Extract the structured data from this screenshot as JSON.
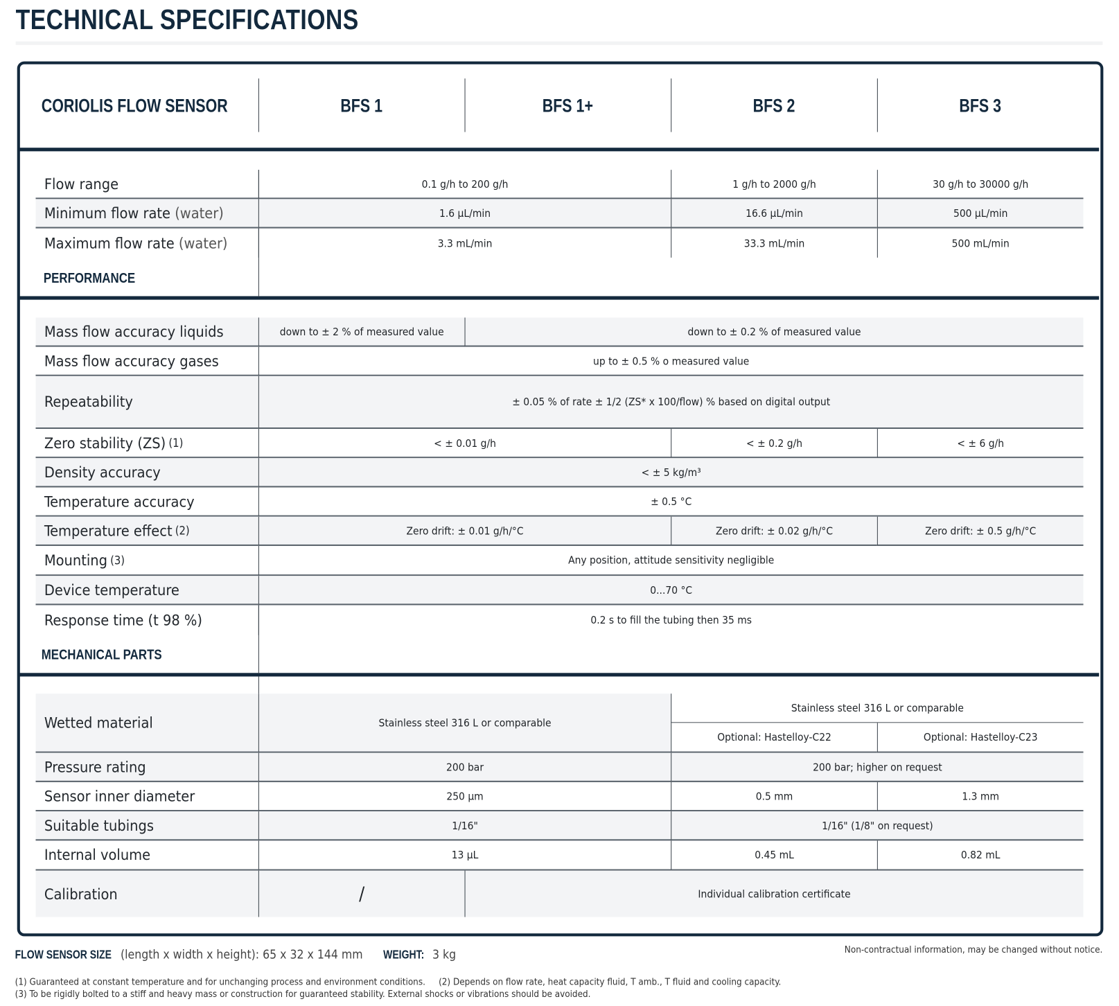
{
  "title": "TECHNICAL SPECIFICATIONS",
  "header": {
    "product": "CORIOLIS FLOW SENSOR",
    "models": [
      "BFS 1",
      "BFS 1+",
      "BFS 2",
      "BFS 3"
    ]
  },
  "sections": {
    "performance": "PERFORMANCE",
    "mechanical": "MECHANICAL PARTS"
  },
  "rows": {
    "flow_range": {
      "label": "Flow range",
      "bfs1": "0.1 g/h to 200 g/h",
      "bfs2": "1 g/h to 2000 g/h",
      "bfs3": "30 g/h to 30000 g/h"
    },
    "min_flow": {
      "label": "Minimum flow rate",
      "label_suffix": "(water)",
      "bfs1": "1.6 µL/min",
      "bfs2": "16.6 µL/min",
      "bfs3": "500 µL/min"
    },
    "max_flow": {
      "label": "Maximum flow rate",
      "label_suffix": "(water)",
      "bfs1": "3.3 mL/min",
      "bfs2": "33.3 mL/min",
      "bfs3": "500 mL/min"
    },
    "acc_liquids": {
      "label": "Mass flow accuracy liquids",
      "bfs1": "down to ± 2 % of measured value",
      "others": "down to ± 0.2 % of measured value"
    },
    "acc_gases": {
      "label": "Mass flow accuracy gases",
      "all": "up to ± 0.5 % o measured value"
    },
    "repeatability": {
      "label": "Repeatability",
      "all": "± 0.05 % of rate ± 1/2 (ZS* x 100/flow) % based on digital output"
    },
    "zero_stability": {
      "label": "Zero stability (ZS)",
      "note": "(1)",
      "bfs1": "< ± 0.01 g/h",
      "bfs2": "< ± 0.2 g/h",
      "bfs3": "< ± 6 g/h"
    },
    "density": {
      "label": "Density accuracy",
      "all": "< ± 5 kg/m³"
    },
    "temp_accuracy": {
      "label": "Temperature accuracy",
      "all": "± 0.5 °C"
    },
    "temp_effect": {
      "label": "Temperature effect",
      "note": "(2)",
      "bfs1": "Zero drift: ± 0.01 g/h/°C",
      "bfs2": "Zero drift: ± 0.02 g/h/°C",
      "bfs3": "Zero drift: ± 0.5 g/h/°C"
    },
    "mounting": {
      "label": "Mounting",
      "note": "(3)",
      "all": "Any position, attitude sensitivity negligible"
    },
    "device_temp": {
      "label": "Device temperature",
      "all": "0...70 °C"
    },
    "response": {
      "label": "Response time (t 98 %)",
      "all": "0.2 s to fill the tubing then 35 ms"
    },
    "wetted": {
      "label": "Wetted material",
      "bfs1": "Stainless steel 316 L or comparable",
      "bfs23": "Stainless steel 316 L or comparable",
      "bfs2_opt": "Optional: Hastelloy-C22",
      "bfs3_opt": "Optional: Hastelloy-C23"
    },
    "pressure": {
      "label": "Pressure rating",
      "bfs1": "200 bar",
      "bfs23": "200 bar; higher on request"
    },
    "inner_diameter": {
      "label": "Sensor inner diameter",
      "bfs1": "250 µm",
      "bfs2": "0.5 mm",
      "bfs3": "1.3 mm"
    },
    "tubings": {
      "label": "Suitable tubings",
      "bfs1": "1/16\"",
      "bfs23": "1/16\" (1/8\" on request)"
    },
    "internal_volume": {
      "label": "Internal volume",
      "bfs1": "13 µL",
      "bfs2": "0.45 mL",
      "bfs3": "0.82 mL"
    },
    "calibration": {
      "label": "Calibration",
      "bfs1": "/",
      "others": "Individual calibration certificate"
    }
  },
  "footer": {
    "size_label": "FLOW SENSOR SIZE",
    "size_value": "(length x width x height): 65 x 32 x 144 mm",
    "weight_label": "WEIGHT:",
    "weight_value": "3 kg",
    "disclaimer": "Non-contractual information, may be changed without notice.",
    "note1": "(1) Guaranteed at constant temperature and for unchanging process and environment conditions.",
    "note2": "(2) Depends on flow rate, heat capacity fluid, T amb., T fluid and cooling capacity.",
    "note3": "(3) To be rigidly bolted to a stiff and heavy mass or construction for guaranteed stability. External shocks or vibrations should be avoided."
  }
}
